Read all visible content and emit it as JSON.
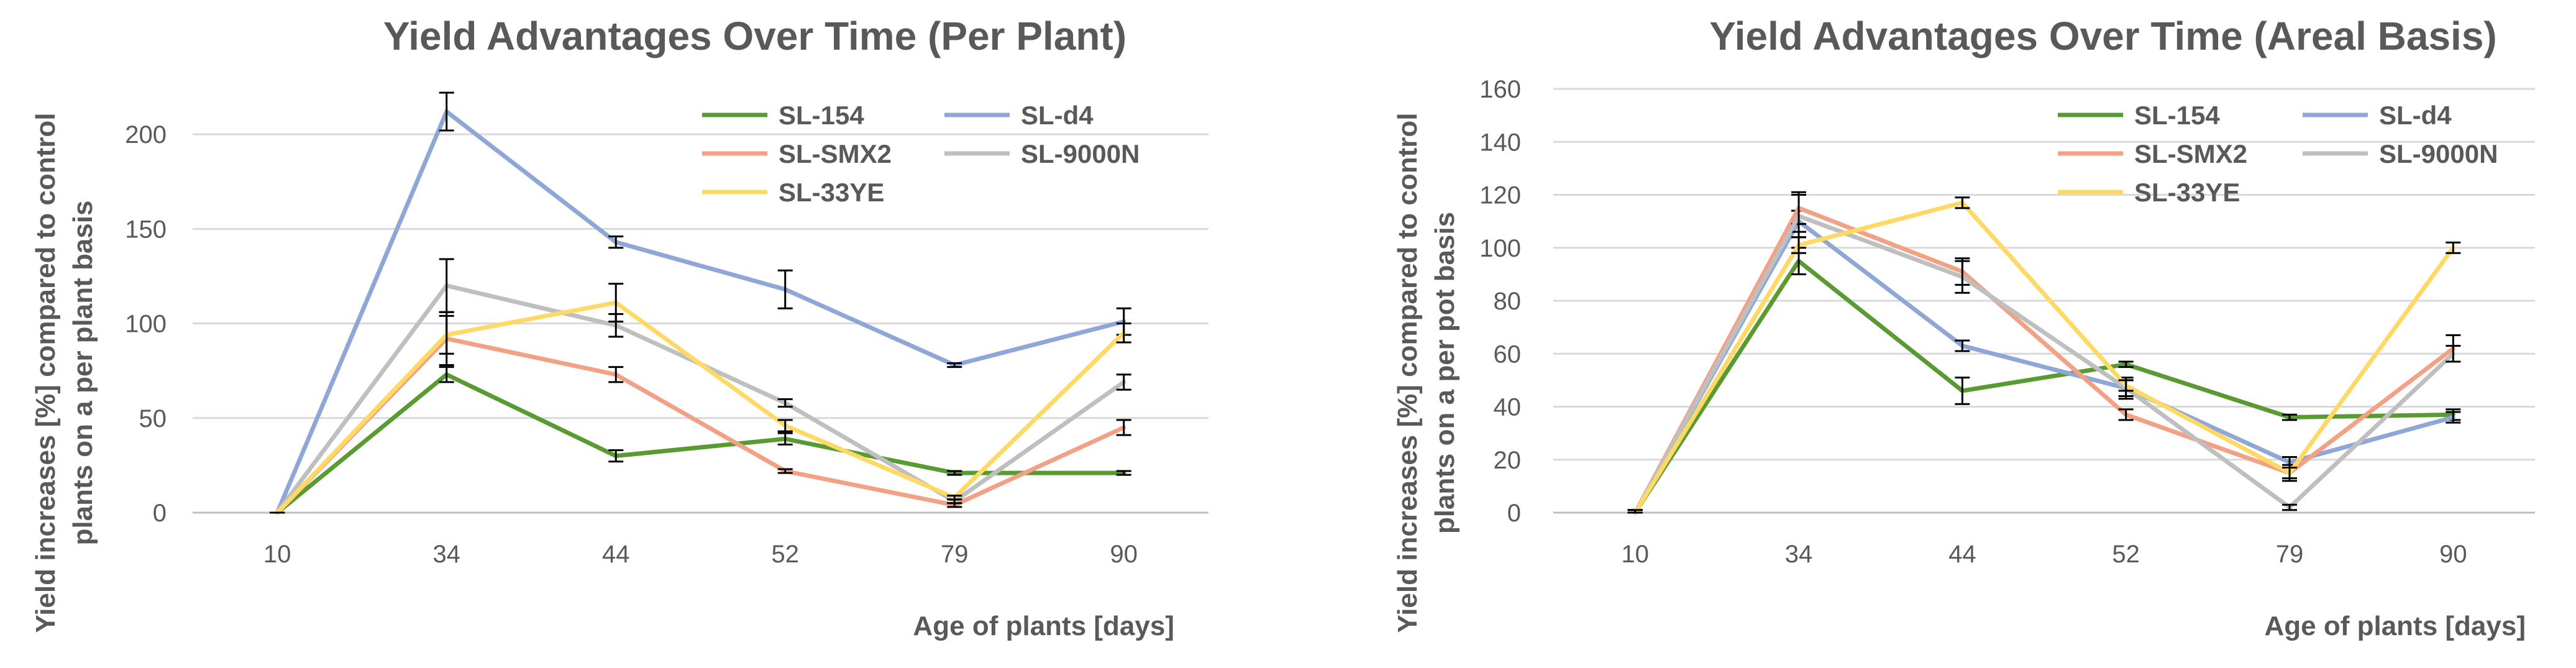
{
  "chart_data": [
    {
      "type": "line",
      "title": "Yield Advantages Over Time (Per Plant)",
      "xlabel": "Age of plants [days]",
      "ylabel": [
        "Yield increases [%] compared to control",
        "plants on a per plant basis"
      ],
      "categories": [
        "10",
        "34",
        "44",
        "52",
        "79",
        "90"
      ],
      "ylim": [
        0,
        225
      ],
      "yticks": [
        0,
        50,
        100,
        150,
        200
      ],
      "grid": true,
      "legend_position": "top-right",
      "series": [
        {
          "name": "SL-154",
          "color": "#5a9a33",
          "values": [
            0,
            73,
            30,
            39,
            21,
            21
          ],
          "errors": [
            0,
            4,
            3,
            3,
            1,
            1
          ]
        },
        {
          "name": "SL-d4",
          "color": "#8ea7d6",
          "values": [
            0,
            212,
            143,
            118,
            78,
            101
          ],
          "errors": [
            0,
            10,
            3,
            10,
            1,
            7
          ]
        },
        {
          "name": "SL-SMX2",
          "color": "#f2a184",
          "values": [
            0,
            92,
            73,
            22,
            4,
            45
          ],
          "errors": [
            0,
            14,
            4,
            1,
            1,
            4
          ]
        },
        {
          "name": "SL-9000N",
          "color": "#bfbfbf",
          "values": [
            0,
            120,
            99,
            58,
            6,
            69
          ],
          "errors": [
            0,
            14,
            6,
            2,
            1,
            4
          ]
        },
        {
          "name": "SL-33YE",
          "color": "#ffd966",
          "values": [
            0,
            94,
            111,
            46,
            8,
            95
          ],
          "errors": [
            0,
            10,
            10,
            3,
            1,
            5
          ]
        }
      ]
    },
    {
      "type": "line",
      "title": "Yield Advantages Over Time (Areal Basis)",
      "xlabel": "Age of plants [days]",
      "ylabel": [
        "Yield increases [%] compared to control",
        "plants on a per pot basis"
      ],
      "categories": [
        "10",
        "34",
        "44",
        "52",
        "79",
        "90"
      ],
      "ylim": [
        0,
        160
      ],
      "yticks": [
        0,
        20,
        40,
        60,
        80,
        100,
        120,
        140,
        160
      ],
      "grid": true,
      "legend_position": "top-right",
      "series": [
        {
          "name": "SL-154",
          "color": "#5a9a33",
          "values": [
            0,
            95,
            46,
            56,
            36,
            37
          ],
          "errors": [
            1,
            5,
            5,
            1,
            1,
            2
          ]
        },
        {
          "name": "SL-d4",
          "color": "#8ea7d6",
          "values": [
            0,
            110,
            63,
            47,
            19,
            36
          ],
          "errors": [
            1,
            4,
            2,
            4,
            2,
            2
          ]
        },
        {
          "name": "SL-SMX2",
          "color": "#f2a184",
          "values": [
            0,
            115,
            91,
            37,
            15,
            62
          ],
          "errors": [
            1,
            6,
            5,
            2,
            3,
            5
          ]
        },
        {
          "name": "SL-9000N",
          "color": "#bfbfbf",
          "values": [
            0,
            112,
            89,
            47,
            2,
            60
          ],
          "errors": [
            1,
            8,
            6,
            3,
            1,
            3
          ]
        },
        {
          "name": "SL-33YE",
          "color": "#ffd966",
          "values": [
            0,
            101,
            117,
            48,
            15,
            100
          ],
          "errors": [
            1,
            3,
            2,
            2,
            2,
            2
          ]
        }
      ]
    }
  ]
}
